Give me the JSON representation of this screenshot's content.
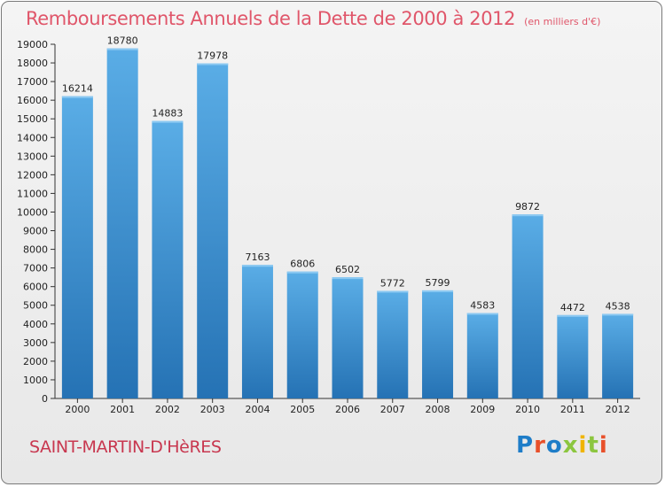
{
  "header": {
    "title": "Remboursements Annuels de la Dette de 2000 à 2012",
    "unit": "(en milliers d'€)"
  },
  "footer": {
    "commune": "SAINT-MARTIN-D'HèRES",
    "logo": "Proxiti"
  },
  "colors": {
    "title": "#e0566a",
    "commune": "#c8374f",
    "bar_top": "#5aade6",
    "bar_bottom": "#2572b4",
    "logo_letters": [
      "#1e7dc8",
      "#e8502a",
      "#1e7dc8",
      "#8cc63f",
      "#f0b400",
      "#8cc63f",
      "#e8502a"
    ]
  },
  "chart_data": {
    "type": "bar",
    "title": "Remboursements Annuels de la Dette de 2000 à 2012",
    "xlabel": "",
    "ylabel": "",
    "categories": [
      "2000",
      "2001",
      "2002",
      "2003",
      "2004",
      "2005",
      "2006",
      "2007",
      "2008",
      "2009",
      "2010",
      "2011",
      "2012"
    ],
    "values": [
      16214,
      18780,
      14883,
      17978,
      7163,
      6806,
      6502,
      5772,
      5799,
      4583,
      9872,
      4472,
      4538
    ],
    "ylim": [
      0,
      19000
    ],
    "yticks": [
      0,
      1000,
      2000,
      3000,
      4000,
      5000,
      6000,
      7000,
      8000,
      9000,
      10000,
      11000,
      12000,
      13000,
      14000,
      15000,
      16000,
      17000,
      18000,
      19000
    ],
    "grid": false,
    "legend": "none"
  }
}
